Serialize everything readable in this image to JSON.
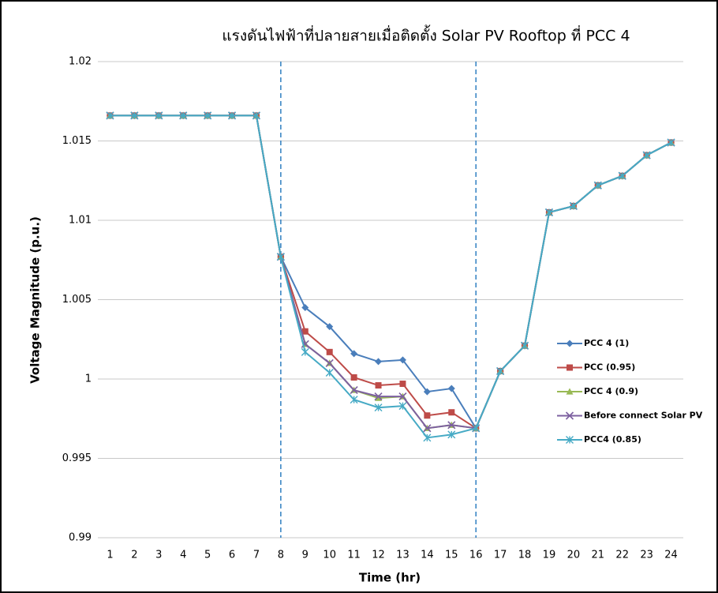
{
  "chart_data": {
    "type": "line",
    "title": "แรงดันไฟฟ้าที่ปลายสายเมื่อติดตั้ง Solar PV Rooftop ที่ PCC 4",
    "x_label": "Time (hr)",
    "y_label": "Voltage Magnitude (p.u.)",
    "categories": [
      "1",
      "2",
      "3",
      "4",
      "5",
      "6",
      "7",
      "8",
      "9",
      "10",
      "11",
      "12",
      "13",
      "14",
      "15",
      "16",
      "17",
      "18",
      "19",
      "20",
      "21",
      "22",
      "23",
      "24"
    ],
    "ylim": [
      0.99,
      1.02
    ],
    "yticks": [
      0.99,
      0.995,
      1,
      1.005,
      1.01,
      1.015,
      1.02
    ],
    "grid": true,
    "vlines": [
      "8",
      "16"
    ],
    "series": [
      {
        "name": "PCC 4 (1)",
        "color": "#4a7ebb",
        "marker": "diamond",
        "values": [
          1.0166,
          1.0166,
          1.0166,
          1.0166,
          1.0166,
          1.0166,
          1.0166,
          1.0077,
          1.0045,
          1.0033,
          1.0016,
          1.0011,
          1.0012,
          0.9992,
          0.9994,
          0.9969,
          1.0005,
          1.0021,
          1.0105,
          1.0109,
          1.0122,
          1.0128,
          1.0141,
          1.0149
        ]
      },
      {
        "name": "PCC (0.95)",
        "color": "#be4b48",
        "marker": "square",
        "values": [
          1.0166,
          1.0166,
          1.0166,
          1.0166,
          1.0166,
          1.0166,
          1.0166,
          1.0077,
          1.003,
          1.0017,
          1.0001,
          0.9996,
          0.9997,
          0.9977,
          0.9979,
          0.9969,
          1.0005,
          1.0021,
          1.0105,
          1.0109,
          1.0122,
          1.0128,
          1.0141,
          1.0149
        ]
      },
      {
        "name": "PCC 4 (0.9)",
        "color": "#98b954",
        "marker": "triangle",
        "values": [
          1.0166,
          1.0166,
          1.0166,
          1.0166,
          1.0166,
          1.0166,
          1.0166,
          1.0077,
          1.0022,
          1.001,
          0.9993,
          0.9988,
          0.9989,
          0.9969,
          0.9971,
          0.9969,
          1.0005,
          1.0021,
          1.0105,
          1.0109,
          1.0122,
          1.0128,
          1.0141,
          1.0149
        ]
      },
      {
        "name": "Before connect Solar PV",
        "color": "#7d60a0",
        "marker": "x",
        "values": [
          1.0166,
          1.0166,
          1.0166,
          1.0166,
          1.0166,
          1.0166,
          1.0166,
          1.0077,
          1.0022,
          1.001,
          0.9993,
          0.9989,
          0.9989,
          0.9969,
          0.9971,
          0.9969,
          1.0005,
          1.0021,
          1.0105,
          1.0109,
          1.0122,
          1.0128,
          1.0141,
          1.0149
        ]
      },
      {
        "name": "PCC4 (0.85)",
        "color": "#46aac5",
        "marker": "star",
        "values": [
          1.0166,
          1.0166,
          1.0166,
          1.0166,
          1.0166,
          1.0166,
          1.0166,
          1.0077,
          1.0017,
          1.0004,
          0.9987,
          0.9982,
          0.9983,
          0.9963,
          0.9965,
          0.9969,
          1.0005,
          1.0021,
          1.0105,
          1.0109,
          1.0122,
          1.0128,
          1.0141,
          1.0149
        ]
      }
    ]
  }
}
